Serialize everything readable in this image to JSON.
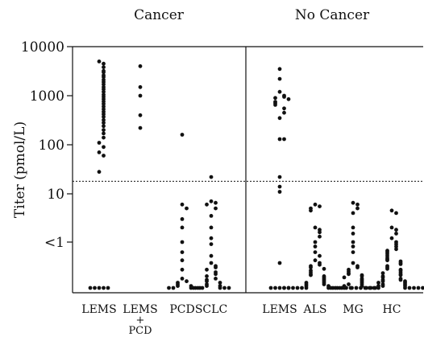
{
  "chart_data": {
    "type": "scatter",
    "panels": [
      "Cancer",
      "No Cancer"
    ],
    "ylabel": "Titer (pmol/L)",
    "y_scale": "log",
    "y_ticks": [
      "10000",
      "1000",
      "100",
      "10",
      "<1"
    ],
    "threshold_dashed_line": 18,
    "groups": [
      {
        "panel": "Cancer",
        "label_lines": [
          "LEMS"
        ],
        "values": [
          5000,
          4500,
          3800,
          3200,
          3000,
          2600,
          2400,
          2100,
          1900,
          1700,
          1500,
          1350,
          1200,
          1050,
          950,
          850,
          760,
          680,
          600,
          530,
          470,
          420,
          370,
          320,
          280,
          240,
          200,
          170,
          140,
          110,
          90,
          70,
          60,
          28,
          0.1,
          0.1,
          0.1,
          0.1,
          0.1
        ]
      },
      {
        "panel": "Cancer",
        "label_lines": [
          "LEMS",
          "+",
          "PCD"
        ],
        "values": [
          4000,
          1500,
          1000,
          400,
          220
        ]
      },
      {
        "panel": "Cancer",
        "label_lines": [
          "PCD"
        ],
        "values": [
          160,
          6,
          5,
          3,
          2,
          1,
          0.6,
          0.4,
          0.25,
          0.16,
          0.14,
          0.13,
          0.12,
          0.11,
          0.11,
          0.1,
          0.1,
          0.1,
          0.1,
          0.1
        ]
      },
      {
        "panel": "Cancer",
        "label_lines": [
          "SCLC"
        ],
        "values": [
          22,
          7,
          6.5,
          6,
          5,
          3.5,
          2,
          1.2,
          0.9,
          0.5,
          0.35,
          0.3,
          0.28,
          0.25,
          0.22,
          0.2,
          0.18,
          0.16,
          0.15,
          0.14,
          0.13,
          0.12,
          0.11,
          0.11,
          0.1,
          0.1,
          0.1,
          0.1,
          0.1,
          0.1
        ]
      },
      {
        "panel": "No Cancer",
        "label_lines": [
          "LEMS"
        ],
        "values": [
          3500,
          2200,
          1200,
          1000,
          950,
          900,
          850,
          750,
          700,
          650,
          550,
          450,
          350,
          130,
          130,
          22,
          14,
          11,
          0.35,
          0.1,
          0.1,
          0.1,
          0.1,
          0.1
        ]
      },
      {
        "panel": "No Cancer",
        "label_lines": [
          "ALS"
        ],
        "values": [
          6,
          5.5,
          5,
          4.5,
          2,
          1.8,
          1.6,
          1.3,
          1,
          0.8,
          0.6,
          0.5,
          0.4,
          0.35,
          0.32,
          0.3,
          0.28,
          0.26,
          0.24,
          0.22,
          0.2,
          0.19,
          0.18,
          0.17,
          0.16,
          0.15,
          0.14,
          0.13,
          0.13,
          0.12,
          0.12,
          0.11,
          0.11,
          0.1,
          0.1,
          0.1,
          0.1,
          0.1,
          0.1,
          0.1,
          0.1,
          0.1,
          0.1,
          0.1,
          0.1
        ]
      },
      {
        "panel": "No Cancer",
        "label_lines": [
          "MG"
        ],
        "values": [
          6.5,
          6,
          5,
          4,
          2,
          1.5,
          1,
          0.8,
          0.6,
          0.35,
          0.3,
          0.28,
          0.25,
          0.23,
          0.21,
          0.2,
          0.19,
          0.18,
          0.17,
          0.16,
          0.15,
          0.14,
          0.13,
          0.12,
          0.12,
          0.11,
          0.11,
          0.1,
          0.1,
          0.1,
          0.1,
          0.1,
          0.1,
          0.1
        ]
      },
      {
        "panel": "No Cancer",
        "label_lines": [
          "HC"
        ],
        "values": [
          4.5,
          4,
          2,
          1.8,
          1.5,
          1.2,
          1,
          0.9,
          0.8,
          0.7,
          0.65,
          0.6,
          0.55,
          0.5,
          0.45,
          0.42,
          0.4,
          0.38,
          0.35,
          0.33,
          0.3,
          0.28,
          0.26,
          0.25,
          0.24,
          0.22,
          0.21,
          0.2,
          0.19,
          0.18,
          0.17,
          0.16,
          0.15,
          0.15,
          0.14,
          0.14,
          0.13,
          0.13,
          0.12,
          0.12,
          0.11,
          0.11,
          0.11,
          0.1,
          0.1,
          0.1,
          0.1,
          0.1,
          0.1,
          0.1,
          0.1,
          0.1,
          0.1,
          0.1,
          0.1,
          0.1,
          0.1,
          0.1
        ]
      }
    ]
  }
}
